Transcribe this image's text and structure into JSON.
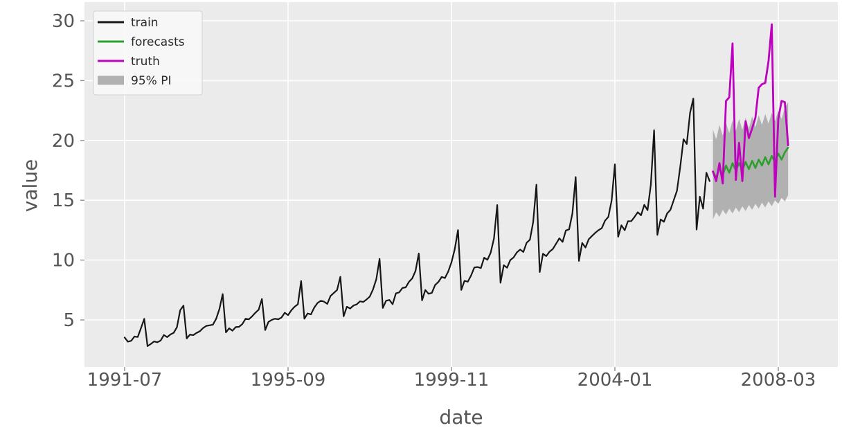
{
  "chart_data": {
    "type": "line",
    "title": "",
    "xlabel": "date",
    "ylabel": "value",
    "x_unit": "month",
    "x_start": "1991-07",
    "x_end": "2008-06",
    "ylim": [
      1.0,
      31.5
    ],
    "grid": true,
    "plot_bg_color": "#ebebeb",
    "grid_color": "#ffffff",
    "tick_label_color": "#555555",
    "tick_mark_color": "#8e8e8e",
    "yticks": [
      5,
      10,
      15,
      20,
      25,
      30
    ],
    "xticks": [
      {
        "label": "1991-07",
        "month_index": 0
      },
      {
        "label": "1995-09",
        "month_index": 50
      },
      {
        "label": "1999-11",
        "month_index": 100
      },
      {
        "label": "2004-01",
        "month_index": 150
      },
      {
        "label": "2008-03",
        "month_index": 200
      }
    ],
    "series": [
      {
        "name": "train",
        "color": "#161616",
        "start_month_index": 0,
        "values": [
          3.53,
          3.18,
          3.25,
          3.61,
          3.57,
          4.31,
          5.09,
          2.81,
          2.99,
          3.2,
          3.13,
          3.27,
          3.74,
          3.56,
          3.78,
          3.92,
          4.39,
          5.81,
          6.19,
          3.45,
          3.77,
          3.73,
          3.91,
          4.05,
          4.32,
          4.5,
          4.55,
          4.6,
          5.09,
          5.91,
          7.16,
          3.96,
          4.3,
          4.1,
          4.4,
          4.42,
          4.65,
          5.1,
          5.05,
          5.3,
          5.6,
          5.85,
          6.75,
          4.15,
          4.83,
          5.0,
          5.1,
          5.05,
          5.2,
          5.6,
          5.4,
          5.8,
          6.1,
          6.3,
          8.25,
          5.1,
          5.54,
          5.46,
          6.02,
          6.41,
          6.6,
          6.53,
          6.34,
          7.0,
          7.25,
          7.5,
          8.6,
          5.3,
          6.1,
          5.95,
          6.2,
          6.3,
          6.55,
          6.5,
          6.7,
          6.95,
          7.55,
          8.4,
          10.1,
          6.0,
          6.6,
          6.67,
          6.31,
          7.22,
          7.3,
          7.67,
          7.72,
          8.18,
          8.47,
          9.1,
          10.55,
          6.63,
          7.5,
          7.18,
          7.26,
          7.92,
          8.17,
          8.59,
          8.5,
          9.04,
          9.81,
          10.9,
          12.51,
          7.5,
          8.27,
          8.19,
          8.71,
          9.38,
          9.42,
          9.33,
          10.2,
          10.02,
          10.62,
          11.8,
          14.6,
          8.1,
          9.57,
          9.36,
          10.0,
          10.22,
          10.64,
          10.88,
          10.68,
          11.45,
          11.7,
          13.18,
          16.3,
          9.0,
          10.53,
          10.33,
          10.7,
          10.92,
          11.36,
          11.82,
          11.52,
          12.47,
          12.57,
          13.89,
          16.94,
          9.93,
          11.43,
          11.05,
          11.74,
          12.02,
          12.28,
          12.5,
          12.67,
          13.3,
          13.61,
          14.97,
          18.0,
          11.95,
          12.91,
          12.49,
          13.25,
          13.25,
          13.6,
          14.0,
          13.74,
          14.62,
          14.17,
          16.3,
          20.85,
          12.1,
          13.4,
          13.2,
          13.9,
          14.2,
          15.0,
          15.8,
          17.8,
          20.1,
          19.7,
          22.3,
          23.5,
          12.55,
          15.3,
          14.3,
          17.3,
          16.6
        ]
      },
      {
        "name": "forecasts",
        "color": "#2ca02c",
        "start_month_index": 180,
        "values": [
          17.4,
          16.9,
          17.7,
          17.1,
          17.9,
          17.3,
          18.1,
          17.5,
          18.1,
          17.5,
          18.2,
          17.6,
          18.3,
          17.7,
          18.4,
          17.9,
          18.6,
          18.0,
          18.7,
          18.2,
          18.9,
          18.4,
          19.0,
          19.4
        ]
      },
      {
        "name": "truth",
        "color": "#bf00bf",
        "start_month_index": 180,
        "values": [
          17.4,
          16.6,
          18.1,
          16.4,
          23.3,
          23.6,
          28.1,
          16.7,
          19.8,
          16.6,
          21.6,
          20.2,
          21.0,
          21.9,
          24.4,
          24.7,
          24.8,
          26.6,
          29.7,
          15.3,
          21.8,
          23.3,
          23.2,
          19.6
        ]
      }
    ],
    "band": {
      "name": "95% PI",
      "color": "#b1b1b1",
      "start_month_index": 180,
      "upper": [
        20.9,
        20.1,
        21.3,
        20.4,
        21.5,
        20.6,
        21.7,
        20.8,
        21.8,
        20.9,
        21.9,
        21.0,
        22.0,
        21.1,
        22.1,
        21.3,
        22.2,
        21.4,
        22.3,
        21.6,
        22.5,
        21.8,
        22.7,
        23.2
      ],
      "lower": [
        13.4,
        14.0,
        13.6,
        14.2,
        13.8,
        14.3,
        13.9,
        14.4,
        14.0,
        14.5,
        14.1,
        14.6,
        14.2,
        14.7,
        14.3,
        14.8,
        14.4,
        14.9,
        14.5,
        15.0,
        14.7,
        15.2,
        14.9,
        15.4
      ]
    },
    "legend": {
      "position": "upper left",
      "bg_color": "#f8f8f8",
      "border_color": "#d0d0d0",
      "text_color": "#2b2b2b",
      "entries": [
        {
          "label": "train",
          "swatch": "line",
          "color": "#161616"
        },
        {
          "label": "forecasts",
          "swatch": "line",
          "color": "#2ca02c"
        },
        {
          "label": "truth",
          "swatch": "line",
          "color": "#bf00bf"
        },
        {
          "label": "95% PI",
          "swatch": "patch",
          "color": "#b1b1b1"
        }
      ]
    }
  }
}
